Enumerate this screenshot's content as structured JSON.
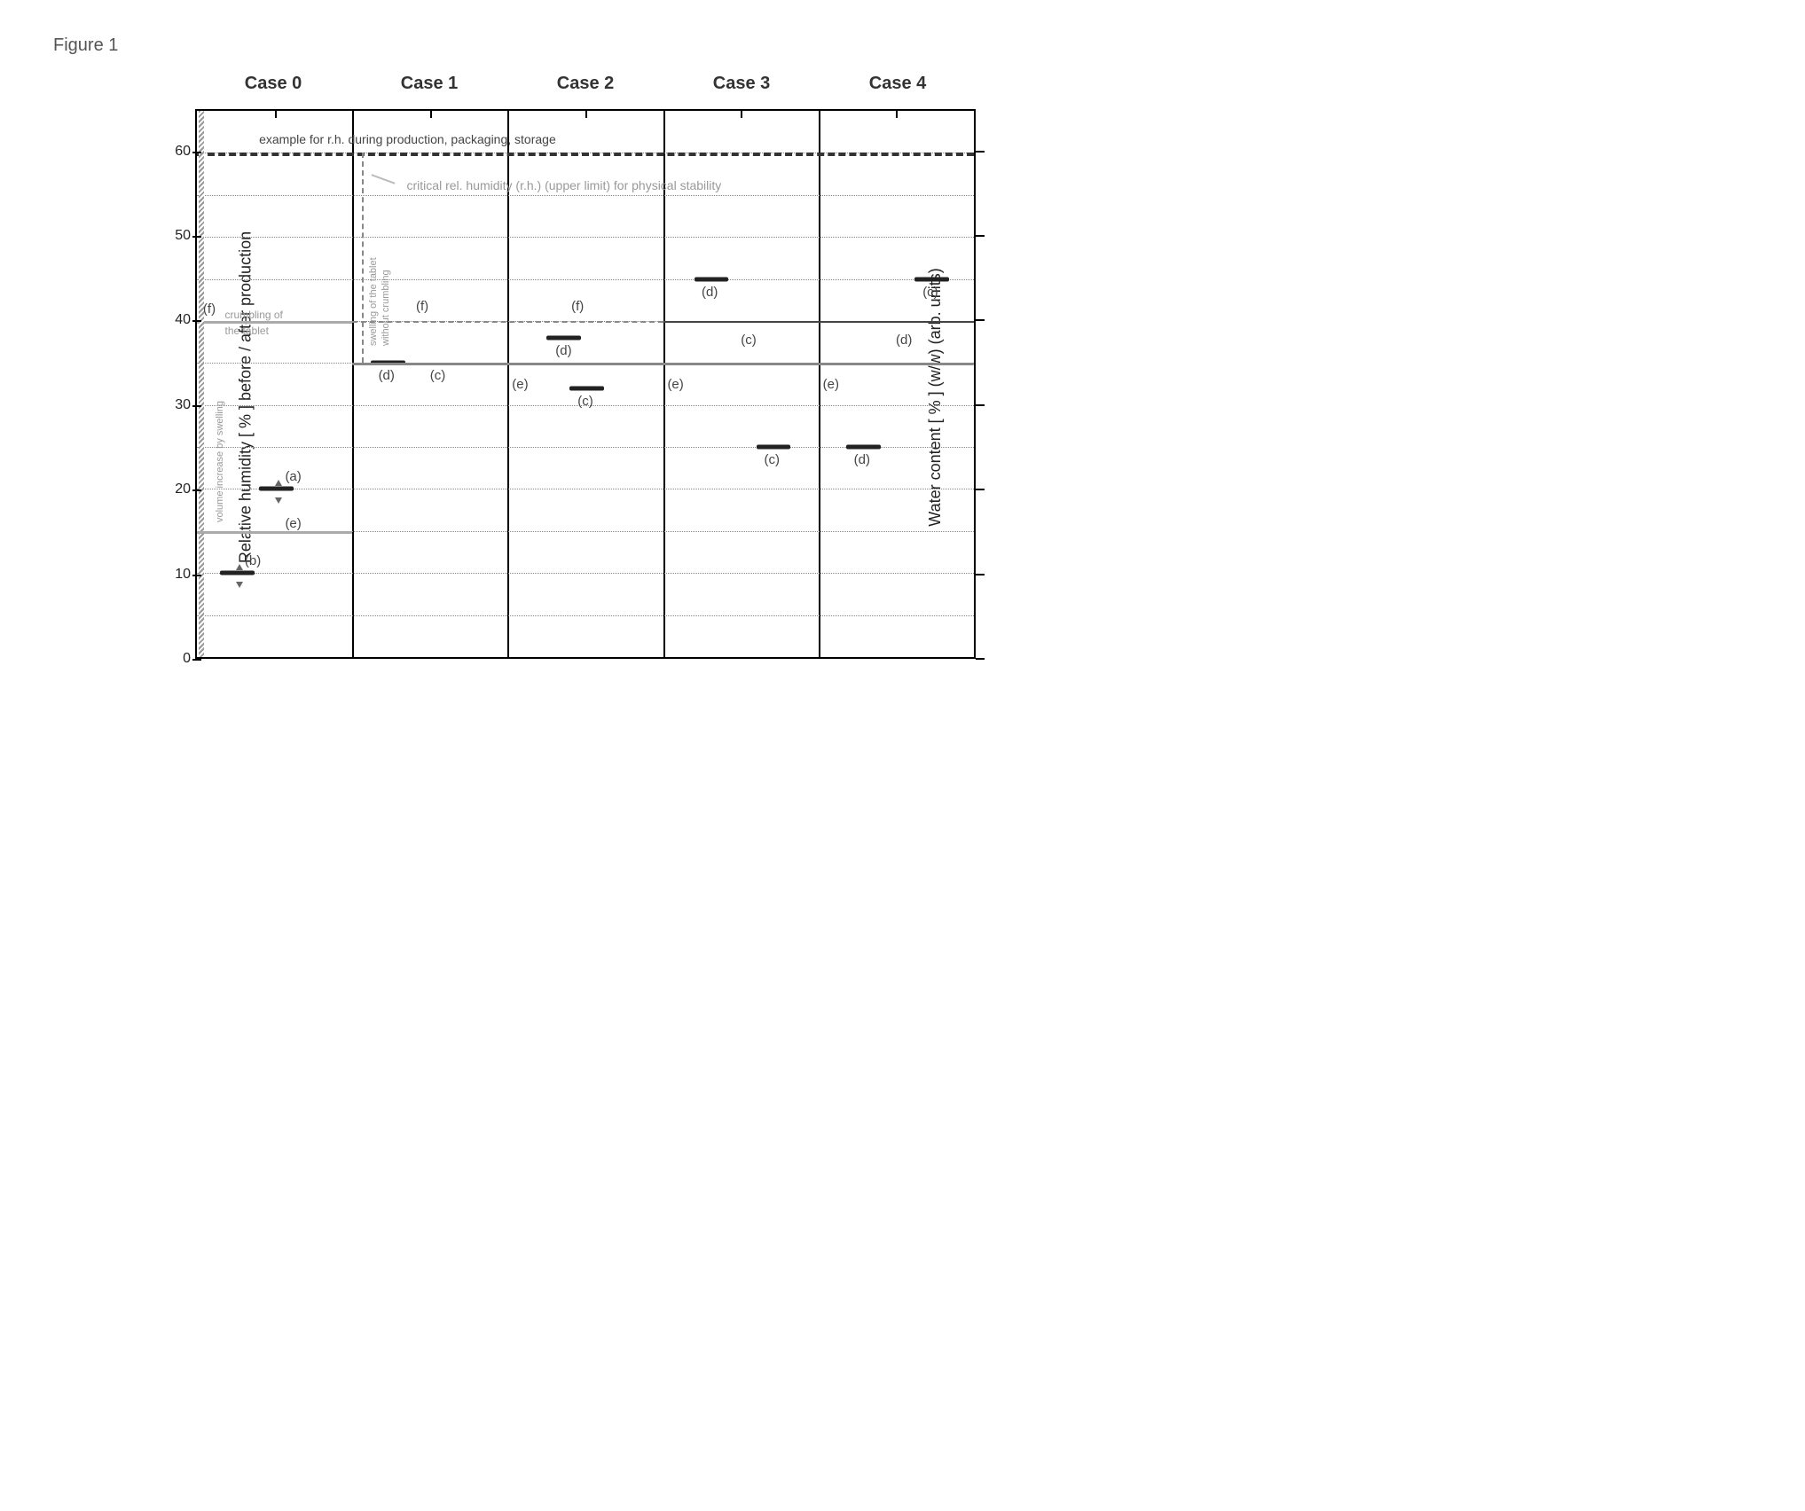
{
  "figure_label": "Figure 1",
  "case_headers": [
    "Case 0",
    "Case 1",
    "Case 2",
    "Case 3",
    "Case 4"
  ],
  "axes": {
    "y_left_label": "Relative humidity [ % ] before / after production",
    "y_right_label": "Water content [ % ] (w/w) (arb. units)",
    "ylim": [
      0,
      65
    ],
    "yticks": [
      0,
      10,
      20,
      30,
      40,
      50,
      60
    ],
    "minor_grid": [
      5,
      15,
      25,
      35,
      45,
      55
    ],
    "background_color": "#ffffff",
    "border_color": "#000000",
    "grid_color": "#888888"
  },
  "panels": 5,
  "ref_lines": {
    "top_dashed": {
      "y": 60,
      "label": "example for r.h. during production, packaging, storage"
    },
    "critical_rh": {
      "y": 58,
      "label": "critical rel. humidity (r.h.) (upper limit) for physical stability",
      "color": "#999999"
    }
  },
  "case0": {
    "crumbling_threshold": {
      "y": 40,
      "label_left": "(f)",
      "text": "crumbling of\nthe tablet"
    },
    "vol_increase_text": "volume increase by swelling",
    "a": {
      "y": 20,
      "label": "(a)"
    },
    "b": {
      "y": 10,
      "label": "(b)"
    },
    "e_low": {
      "y": 17,
      "label": "(e)"
    },
    "e_line": {
      "y": 15
    }
  },
  "case1": {
    "swelling_text1": "swelling of the tablet",
    "swelling_text2": "without crumbling",
    "f_line": {
      "y": 40,
      "label": "(f)"
    },
    "d": {
      "y": 35,
      "label": "(d)"
    },
    "c": {
      "y": 35,
      "label": "(c)"
    }
  },
  "case2": {
    "f": {
      "y": 42,
      "label": "(f)"
    },
    "d": {
      "y": 38,
      "label": "(d)"
    },
    "c": {
      "y": 32,
      "label": "(c)"
    },
    "e": {
      "y": 34,
      "label": "(e)"
    }
  },
  "case3": {
    "d": {
      "y": 45,
      "label": "(d)"
    },
    "c_up": {
      "y": 39,
      "label": "(c)"
    },
    "e": {
      "y": 34,
      "label": "(e)"
    },
    "c_low": {
      "y": 25,
      "label": "(c)"
    }
  },
  "case4": {
    "c_up": {
      "y": 45,
      "label": "(c)"
    },
    "d_up": {
      "y": 39,
      "label": "(d)"
    },
    "e": {
      "y": 34,
      "label": "(e)"
    },
    "d_low": {
      "y": 25,
      "label": "(d)"
    }
  },
  "shared": {
    "line35": {
      "y": 35,
      "from_panel": 1,
      "to_panel": 5
    },
    "line40": {
      "y": 40,
      "from_panel": 3,
      "to_panel": 5
    }
  },
  "colors": {
    "header": "#333333",
    "segment_dark": "#222222",
    "segment_gray": "#888888",
    "gray_text": "#999999",
    "dash": "#333333"
  },
  "fontsizes": {
    "figure_label": 20,
    "case_header": 20,
    "axis_label": 18,
    "tick": 16,
    "annot": 15
  }
}
